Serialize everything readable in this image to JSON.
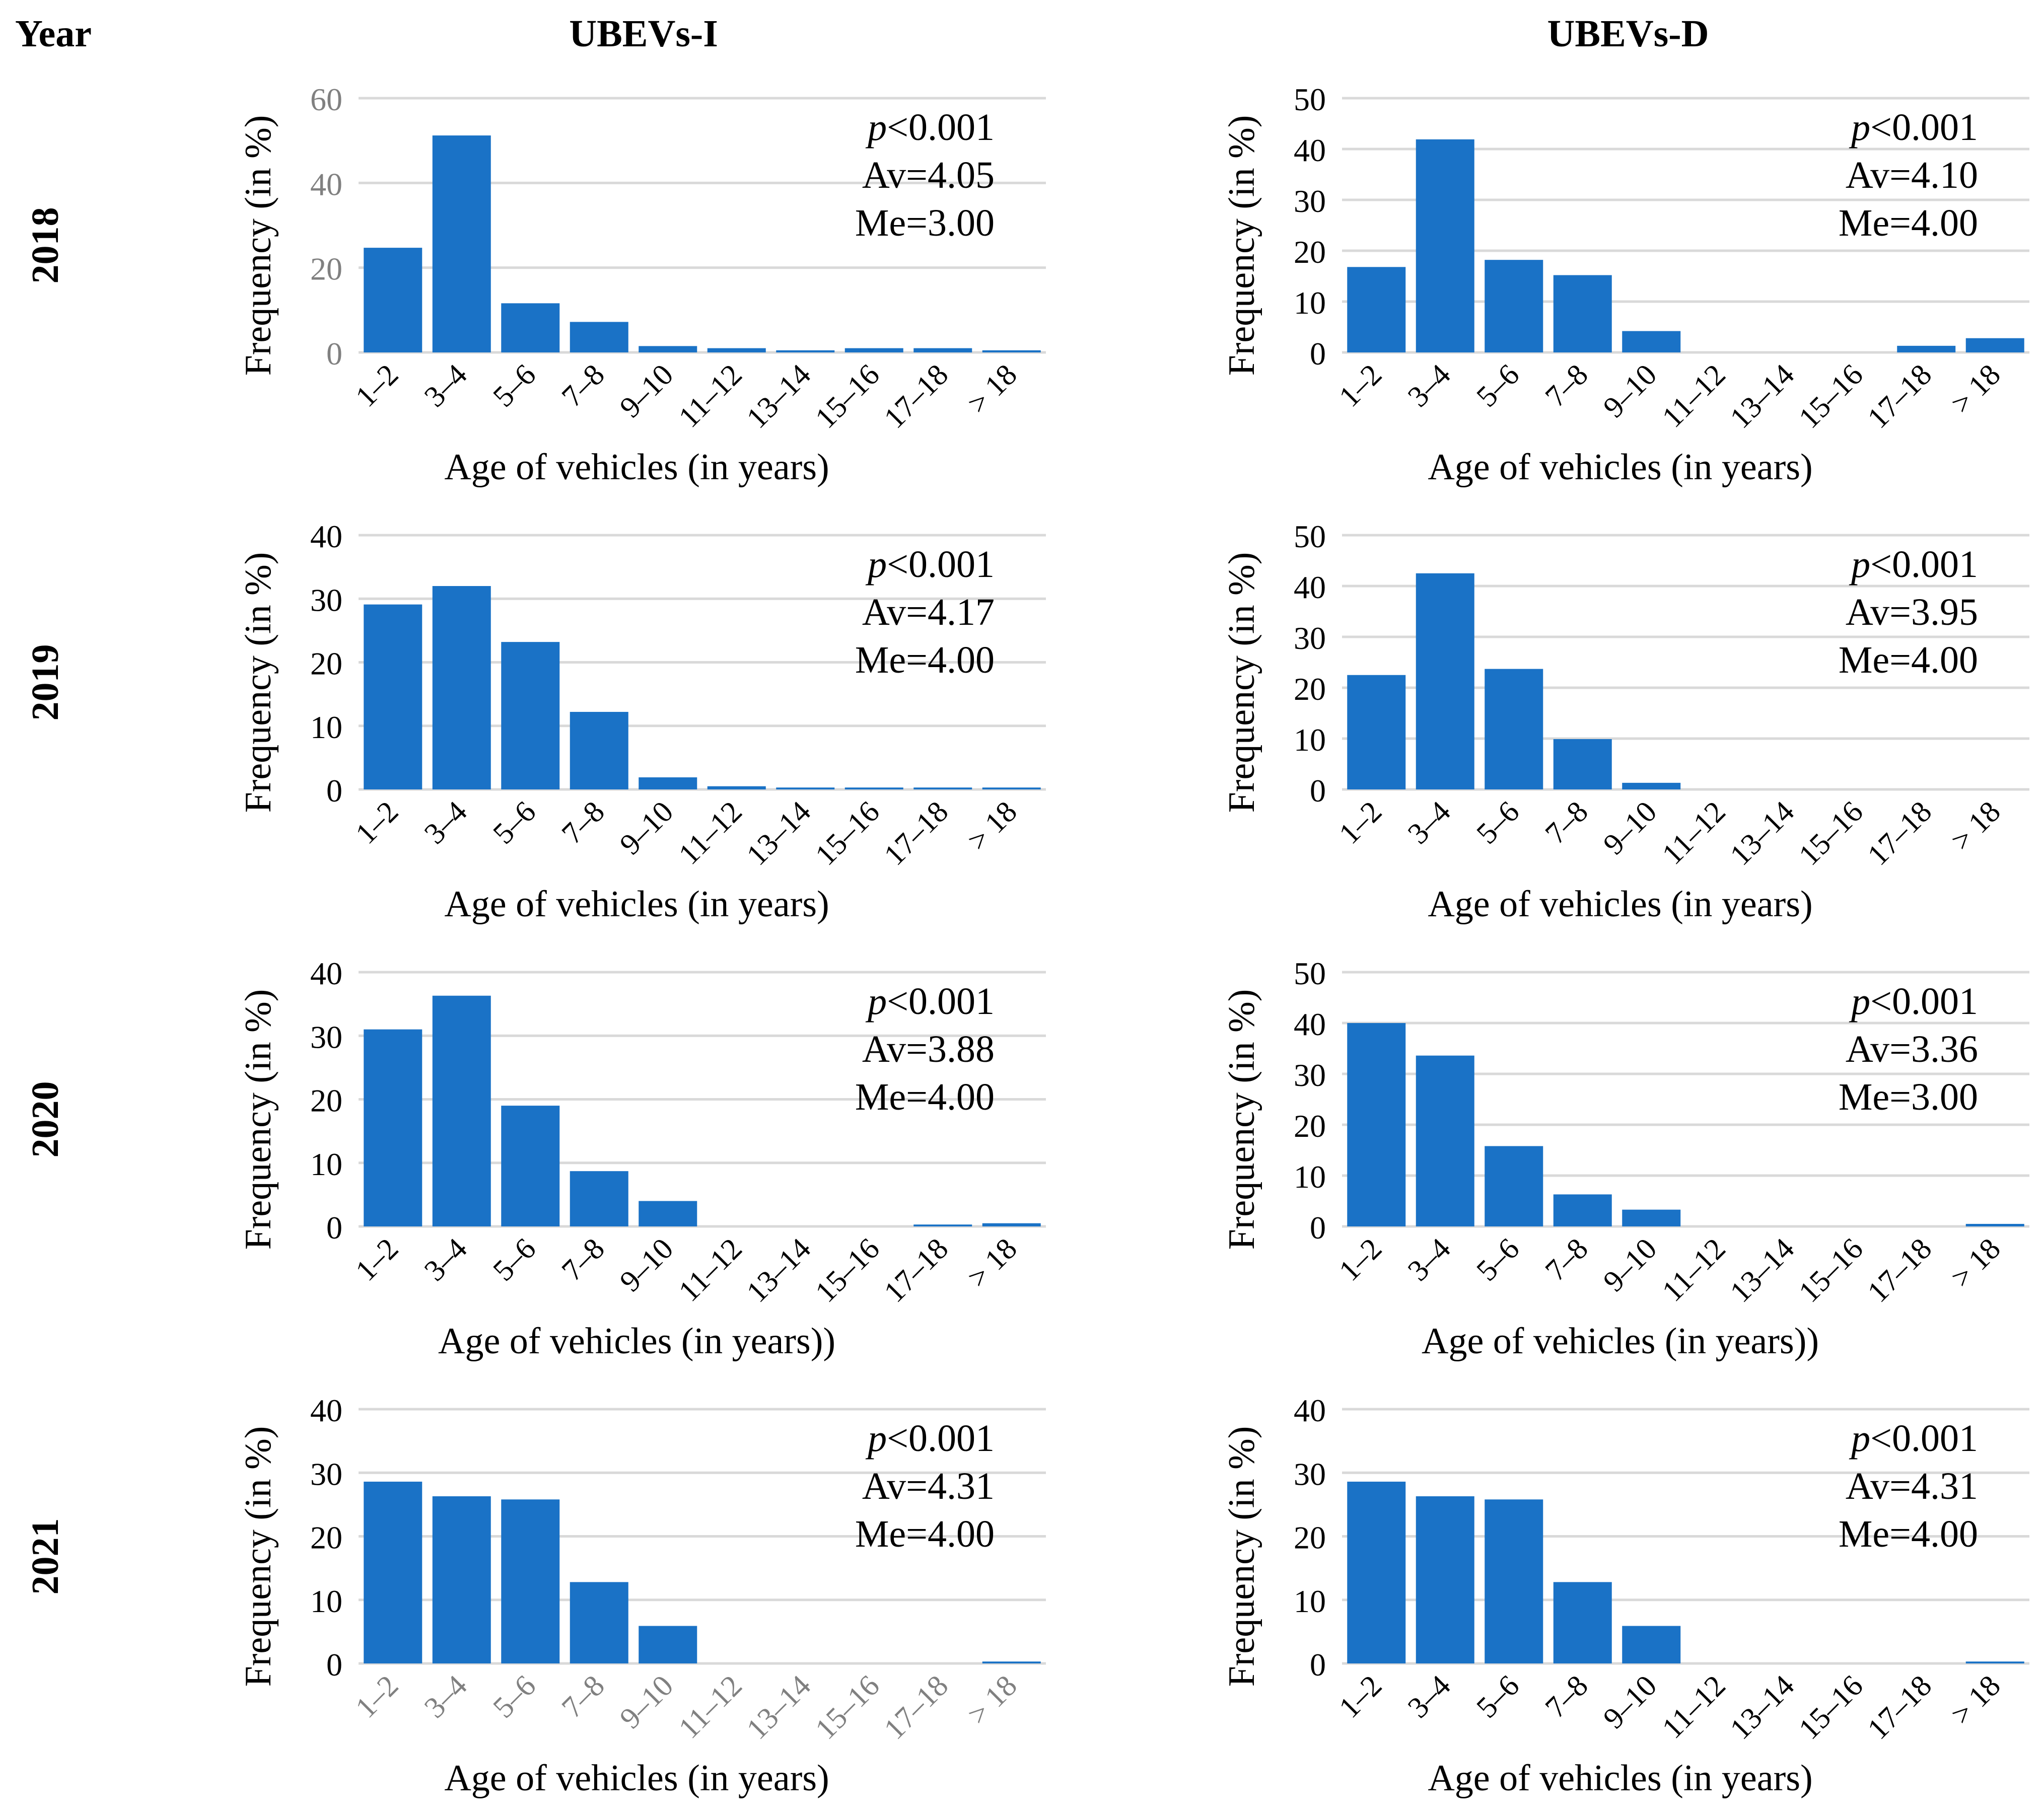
{
  "header": {
    "year_label": "Year",
    "columns": [
      "UBEVs-I",
      "UBEVs-D"
    ]
  },
  "years": [
    "2018",
    "2019",
    "2020",
    "2021"
  ],
  "colors": {
    "bar": "#1a72c6",
    "grid": "#d9d9d9",
    "text": "#000000",
    "tick": "#000000",
    "tick_muted": "#808080"
  },
  "chart_data": [
    {
      "type": "bar",
      "year": "2018",
      "group": "UBEVs-I",
      "categories": [
        "1–2",
        "3–4",
        "5–6",
        "7–8",
        "9–10",
        "11–12",
        "13–14",
        "15–16",
        "17–18",
        "> 18"
      ],
      "values": [
        24.7,
        51.2,
        11.6,
        7.2,
        1.5,
        1.0,
        0.5,
        1.0,
        1.0,
        0.5
      ],
      "ylim": [
        0,
        60
      ],
      "yticks": [
        0,
        20,
        40,
        60
      ],
      "ylabel": "Frequency (in %)",
      "xlabel": "Age of vehicles (in years)",
      "stats": {
        "p": "p",
        "p_rest": "<0.001",
        "av": "Av=4.05",
        "me": "Me=3.00"
      }
    },
    {
      "type": "bar",
      "year": "2018",
      "group": "UBEVs-D",
      "categories": [
        "1–2",
        "3–4",
        "5–6",
        "7–8",
        "9–10",
        "11–12",
        "13–14",
        "15–16",
        "17–18",
        "> 18"
      ],
      "values": [
        16.8,
        41.9,
        18.2,
        15.2,
        4.2,
        0,
        0,
        0,
        1.3,
        2.8
      ],
      "ylim": [
        0,
        50
      ],
      "yticks": [
        0,
        10,
        20,
        30,
        40,
        50
      ],
      "ylabel": "Frequency (in %)",
      "xlabel": "Age of vehicles (in years)",
      "stats": {
        "p": "p",
        "p_rest": "<0.001",
        "av": "Av=4.10",
        "me": "Me=4.00"
      }
    },
    {
      "type": "bar",
      "year": "2019",
      "group": "UBEVs-I",
      "categories": [
        "1–2",
        "3–4",
        "5–6",
        "7–8",
        "9–10",
        "11–12",
        "13–14",
        "15–16",
        "17–18",
        "> 18"
      ],
      "values": [
        29.1,
        32.0,
        23.2,
        12.2,
        1.9,
        0.5,
        0.3,
        0.3,
        0.3,
        0.3
      ],
      "ylim": [
        0,
        40
      ],
      "yticks": [
        0,
        10,
        20,
        30,
        40
      ],
      "ylabel": "Frequency (in %)",
      "xlabel": "Age of vehicles (in years)",
      "stats": {
        "p": "p",
        "p_rest": "<0.001",
        "av": "Av=4.17",
        "me": "Me=4.00"
      }
    },
    {
      "type": "bar",
      "year": "2019",
      "group": "UBEVs-D",
      "categories": [
        "1–2",
        "3–4",
        "5–6",
        "7–8",
        "9–10",
        "11–12",
        "13–14",
        "15–16",
        "17–18",
        "> 18"
      ],
      "values": [
        22.5,
        42.5,
        23.7,
        9.9,
        1.3,
        0,
        0,
        0,
        0,
        0
      ],
      "ylim": [
        0,
        50
      ],
      "yticks": [
        0,
        10,
        20,
        30,
        40,
        50
      ],
      "ylabel": "Frequency (in %)",
      "xlabel": "Age of vehicles (in years)",
      "stats": {
        "p": "p",
        "p_rest": "<0.001",
        "av": "Av=3.95",
        "me": "Me=4.00"
      }
    },
    {
      "type": "bar",
      "year": "2020",
      "group": "UBEVs-I",
      "categories": [
        "1–2",
        "3–4",
        "5–6",
        "7–8",
        "9–10",
        "11–12",
        "13–14",
        "15–16",
        "17–18",
        "> 18"
      ],
      "values": [
        31.0,
        36.3,
        19.0,
        8.7,
        4.0,
        0,
        0,
        0,
        0.3,
        0.5
      ],
      "ylim": [
        0,
        40
      ],
      "yticks": [
        0,
        10,
        20,
        30,
        40
      ],
      "ylabel": "Frequency (in %)",
      "xlabel": "Age of vehicles (in years))",
      "stats": {
        "p": "p",
        "p_rest": "<0.001",
        "av": "Av=3.88",
        "me": "Me=4.00"
      }
    },
    {
      "type": "bar",
      "year": "2020",
      "group": "UBEVs-D",
      "categories": [
        "1–2",
        "3–4",
        "5–6",
        "7–8",
        "9–10",
        "11–12",
        "13–14",
        "15–16",
        "17–18",
        "> 18"
      ],
      "values": [
        40.0,
        33.6,
        15.8,
        6.3,
        3.3,
        0,
        0,
        0,
        0,
        0.5
      ],
      "ylim": [
        0,
        50
      ],
      "yticks": [
        0,
        10,
        20,
        30,
        40,
        50
      ],
      "ylabel": "Frequency (in %)",
      "xlabel": "Age of vehicles (in years))",
      "stats": {
        "p": "p",
        "p_rest": "<0.001",
        "av": "Av=3.36",
        "me": "Me=3.00"
      }
    },
    {
      "type": "bar",
      "year": "2021",
      "group": "UBEVs-I",
      "categories": [
        "1–2",
        "3–4",
        "5–6",
        "7–8",
        "9–10",
        "11–12",
        "13–14",
        "15–16",
        "17–18",
        "> 18"
      ],
      "values": [
        28.6,
        26.3,
        25.8,
        12.8,
        5.9,
        0,
        0,
        0,
        0,
        0.3
      ],
      "ylim": [
        0,
        40
      ],
      "yticks": [
        0,
        10,
        20,
        30,
        40
      ],
      "ylabel": "Frequency (in %)",
      "xlabel": "Age of vehicles (in years)",
      "stats": {
        "p": "p",
        "p_rest": "<0.001",
        "av": "Av=4.31",
        "me": "Me=4.00"
      }
    },
    {
      "type": "bar",
      "year": "2021",
      "group": "UBEVs-D",
      "categories": [
        "1–2",
        "3–4",
        "5–6",
        "7–8",
        "9–10",
        "11–12",
        "13–14",
        "15–16",
        "17–18",
        "> 18"
      ],
      "values": [
        28.6,
        26.3,
        25.8,
        12.8,
        5.9,
        0,
        0,
        0,
        0,
        0.3
      ],
      "ylim": [
        0,
        40
      ],
      "yticks": [
        0,
        10,
        20,
        30,
        40
      ],
      "ylabel": "Frequency (in %)",
      "xlabel": "Age of vehicles (in years)",
      "stats": {
        "p": "p",
        "p_rest": "<0.001",
        "av": "Av=4.31",
        "me": "Me=4.00"
      }
    }
  ]
}
